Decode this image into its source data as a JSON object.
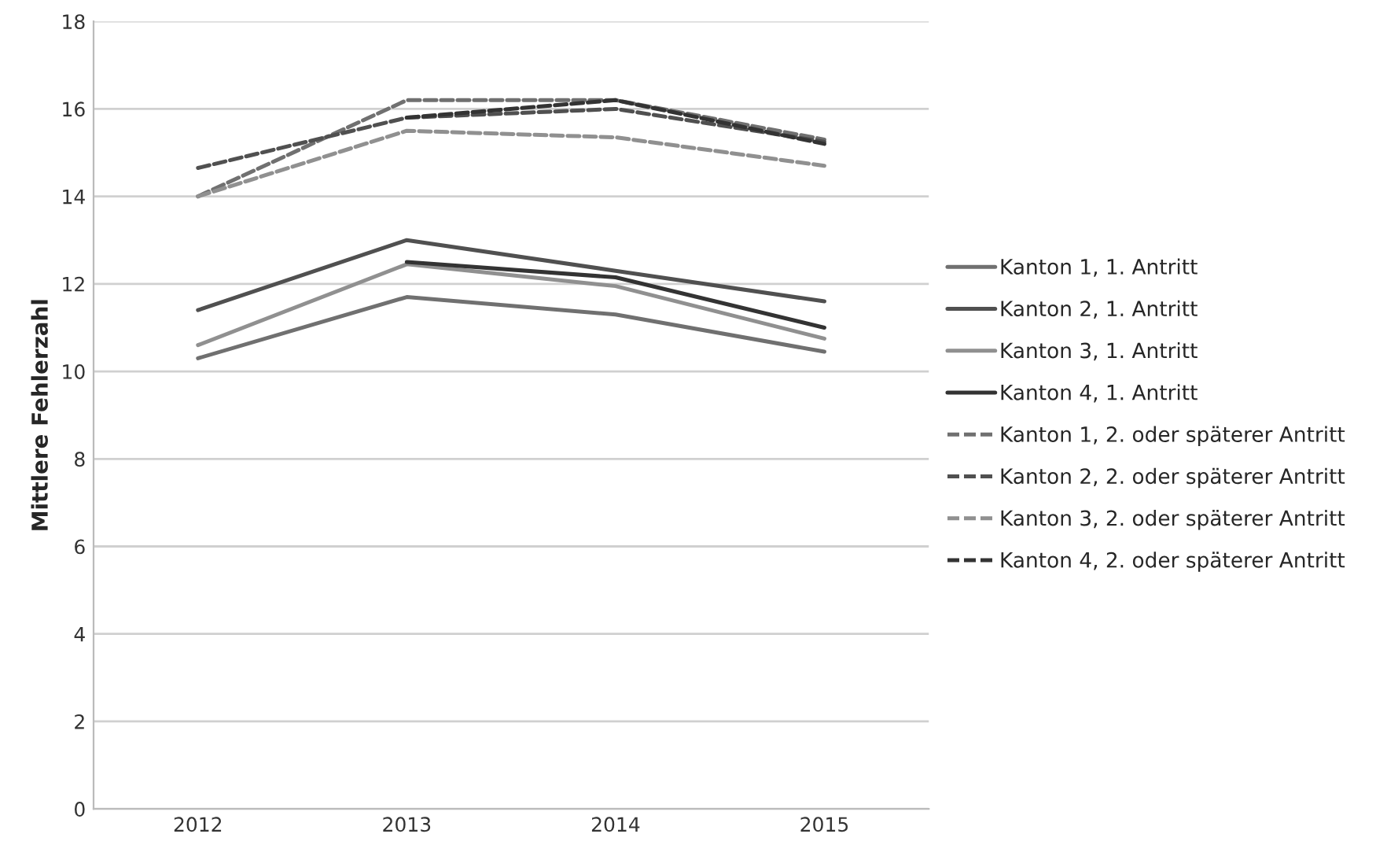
{
  "chart_data": {
    "type": "line",
    "ylabel": "Mittlere Fehlerzahl",
    "categories": [
      "2012",
      "2013",
      "2014",
      "2015"
    ],
    "series": [
      {
        "name": "Kanton 1, 1. Antritt",
        "color": "#707070",
        "line_style": "solid",
        "values": [
          10.3,
          11.7,
          11.3,
          10.45
        ]
      },
      {
        "name": "Kanton 2, 1. Antritt",
        "color": "#505050",
        "line_style": "solid",
        "values": [
          11.4,
          13.0,
          12.3,
          11.6
        ]
      },
      {
        "name": "Kanton 3, 1. Antritt",
        "color": "#909090",
        "line_style": "solid",
        "values": [
          10.6,
          12.45,
          11.95,
          10.75
        ]
      },
      {
        "name": "Kanton 4, 1. Antritt",
        "color": "#333333",
        "line_style": "solid",
        "values": [
          null,
          12.5,
          12.15,
          11.0
        ]
      },
      {
        "name": "Kanton 1, 2. oder späterer Antritt",
        "color": "#707070",
        "line_style": "dashed",
        "values": [
          14.0,
          16.2,
          16.2,
          15.3
        ]
      },
      {
        "name": "Kanton 2, 2. oder späterer Antritt",
        "color": "#505050",
        "line_style": "dashed",
        "values": [
          14.65,
          15.8,
          16.0,
          15.25
        ]
      },
      {
        "name": "Kanton 3, 2. oder späterer Antritt",
        "color": "#909090",
        "line_style": "dashed",
        "values": [
          14.0,
          15.5,
          15.35,
          14.7
        ]
      },
      {
        "name": "Kanton 4, 2. oder späterer Antritt",
        "color": "#333333",
        "line_style": "dashed",
        "values": [
          null,
          15.8,
          16.2,
          15.2
        ]
      }
    ],
    "ylim": [
      0,
      18
    ],
    "yticks": [
      0,
      2,
      4,
      6,
      8,
      10,
      12,
      14,
      16,
      18
    ],
    "grid": "y",
    "legend": "right"
  }
}
